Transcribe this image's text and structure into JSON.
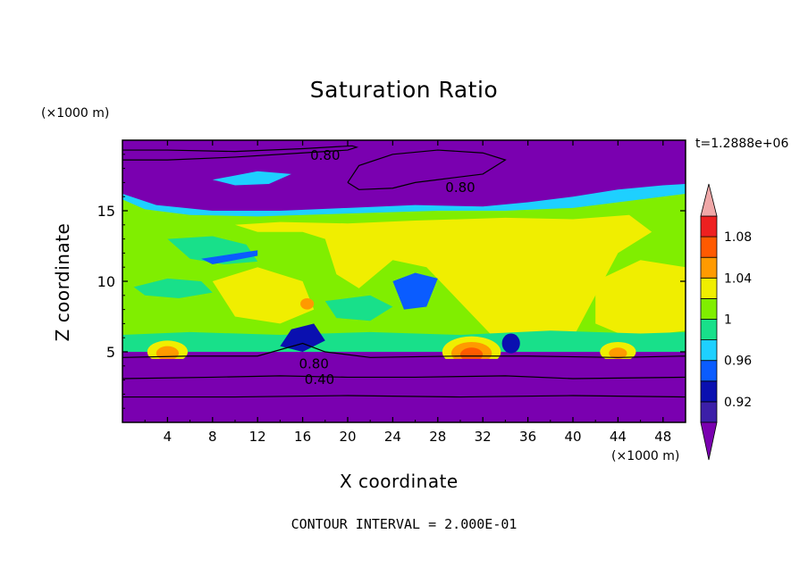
{
  "chart_data": {
    "type": "heatmap",
    "title": "Saturation Ratio",
    "xlabel": "X coordinate",
    "ylabel": "Z coordinate",
    "x_unit": "(×1000 m)",
    "y_unit": "(×1000 m)",
    "time_label": "t=1.2888e+06",
    "footer": "CONTOUR INTERVAL = 2.000E-01",
    "xlim": [
      0,
      50
    ],
    "ylim": [
      0,
      20
    ],
    "x_ticks": [
      4,
      8,
      12,
      16,
      20,
      24,
      28,
      32,
      36,
      40,
      44,
      48
    ],
    "y_ticks": [
      5,
      10,
      15
    ],
    "colorbar_levels": [
      0.9,
      0.92,
      0.94,
      0.96,
      0.98,
      1.0,
      1.02,
      1.04,
      1.06,
      1.08,
      1.1
    ],
    "colorbar_labels": [
      "0.92",
      "0.96",
      "1",
      "1.04",
      "1.08"
    ],
    "colors": {
      "under": "#7a00b0",
      "bands": [
        "#3c1fa8",
        "#0a10b0",
        "#0a5cff",
        "#1ed0ff",
        "#18e08a",
        "#80ee00",
        "#f0ee00",
        "#ff9a00",
        "#ff5a00",
        "#ee2020"
      ],
      "over": "#f0a8a8"
    },
    "contour_labels": [
      "0.80",
      "0.80",
      "0.80",
      "0.40"
    ]
  }
}
